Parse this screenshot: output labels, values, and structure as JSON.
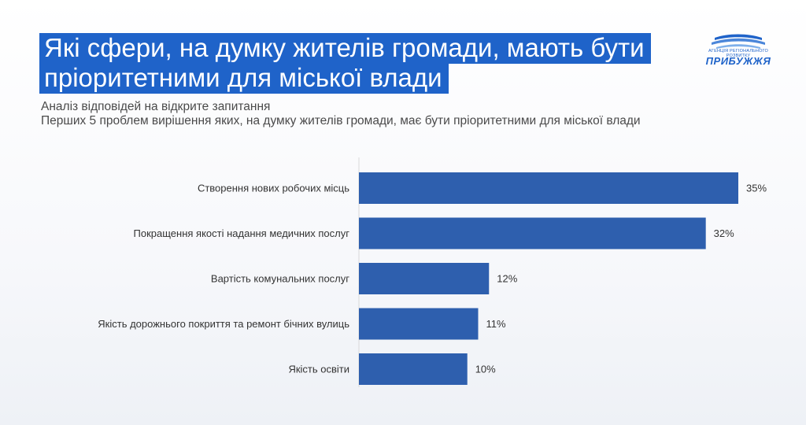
{
  "header": {
    "title_line1": "Які сфери, на думку жителів громади, мають бути",
    "title_line2": "пріоритетними для міської влади",
    "subtitle_line1": "Аналіз відповідей на відкрите запитання",
    "subtitle_line2": "Перших 5 проблем вирішення яких, на думку жителів громади, має бути пріоритетними для міської влади"
  },
  "logo": {
    "tagline": "АГЕНЦІЯ РЕГІОНАЛЬНОГО РОЗВИТКУ",
    "name": "ПРИБУЖЖЯ",
    "icon": "waves-logo-icon"
  },
  "colors": {
    "accent": "#1f63c9",
    "bar": "#2e5fae",
    "axis": "#d9d9d9"
  },
  "chart_data": {
    "type": "bar",
    "orientation": "horizontal",
    "categories": [
      "Створення нових робочих місць",
      "Покращення якості надання медичних послуг",
      "Вартість комунальних послуг",
      "Якість дорожнього покриття та ремонт бічних вулиць",
      "Якість освіти"
    ],
    "values": [
      35,
      32,
      12,
      11,
      10
    ],
    "value_labels": [
      "35%",
      "32%",
      "12%",
      "11%",
      "10%"
    ],
    "unit": "%",
    "xlim": [
      0,
      35
    ],
    "grid": false,
    "legend": "none"
  }
}
